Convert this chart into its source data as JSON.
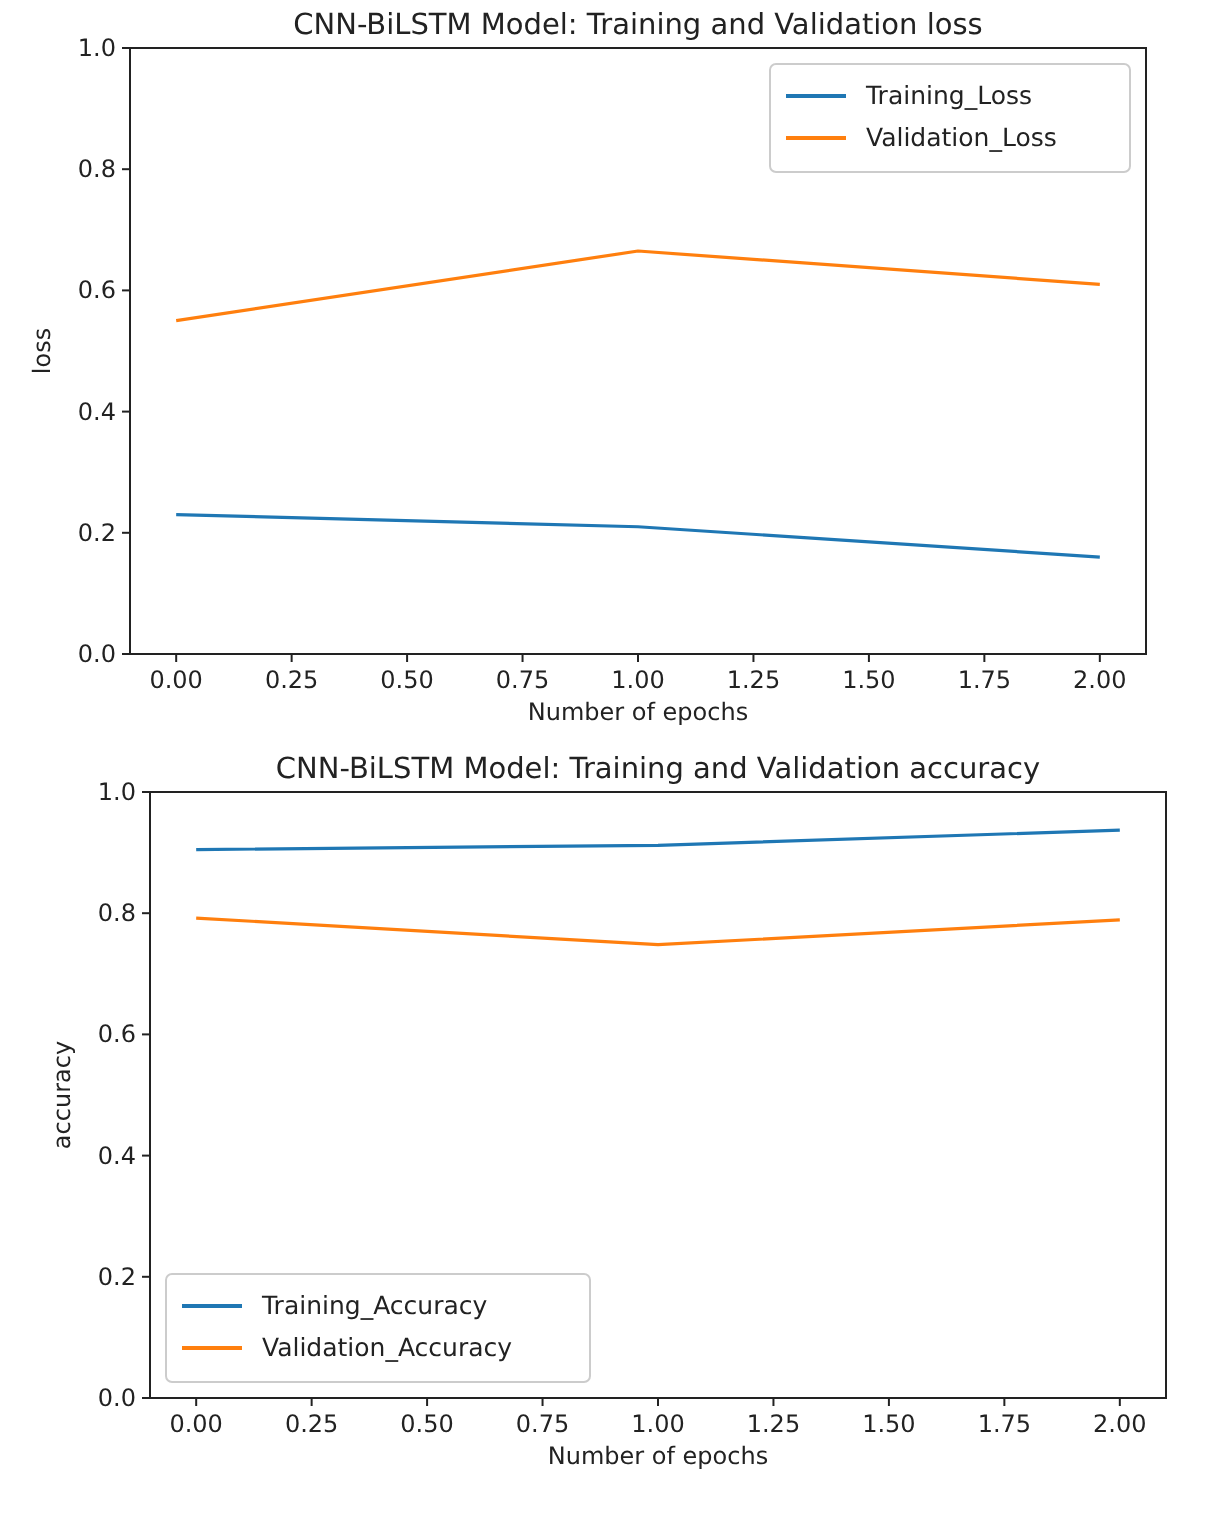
{
  "chart_data": [
    {
      "type": "line",
      "title": "CNN-BiLSTM Model: Training and Validation loss",
      "xlabel": "Number of epochs",
      "ylabel": "loss",
      "x": [
        0,
        1,
        2
      ],
      "series": [
        {
          "name": "Training_Loss",
          "color": "#1f77b4",
          "values": [
            0.23,
            0.21,
            0.16
          ]
        },
        {
          "name": "Validation_Loss",
          "color": "#ff7f0e",
          "values": [
            0.55,
            0.665,
            0.61
          ]
        }
      ],
      "xlim": [
        -0.1,
        2.1
      ],
      "xticks": [
        {
          "value": 0,
          "label": "0.00"
        },
        {
          "value": 0.25,
          "label": "0.25"
        },
        {
          "value": 0.5,
          "label": "0.50"
        },
        {
          "value": 0.75,
          "label": "0.75"
        },
        {
          "value": 1,
          "label": "1.00"
        },
        {
          "value": 1.25,
          "label": "1.25"
        },
        {
          "value": 1.5,
          "label": "1.50"
        },
        {
          "value": 1.75,
          "label": "1.75"
        },
        {
          "value": 2,
          "label": "2.00"
        }
      ],
      "ylim": [
        0,
        1
      ],
      "yticks": [
        {
          "value": 0,
          "label": "0.0"
        },
        {
          "value": 0.2,
          "label": "0.2"
        },
        {
          "value": 0.4,
          "label": "0.4"
        },
        {
          "value": 0.6,
          "label": "0.6"
        },
        {
          "value": 0.8,
          "label": "0.8"
        },
        {
          "value": 1,
          "label": "1.0"
        }
      ],
      "legend": "top right"
    },
    {
      "type": "line",
      "title": "CNN-BiLSTM Model: Training and Validation accuracy",
      "xlabel": "Number of epochs",
      "ylabel": "accuracy",
      "x": [
        0,
        1,
        2
      ],
      "series": [
        {
          "name": "Training_Accuracy",
          "color": "#1f77b4",
          "values": [
            0.905,
            0.912,
            0.937
          ]
        },
        {
          "name": "Validation_Accuracy",
          "color": "#ff7f0e",
          "values": [
            0.792,
            0.748,
            0.789
          ]
        }
      ],
      "xlim": [
        -0.1,
        2.1
      ],
      "xticks": [
        {
          "value": 0,
          "label": "0.00"
        },
        {
          "value": 0.25,
          "label": "0.25"
        },
        {
          "value": 0.5,
          "label": "0.50"
        },
        {
          "value": 0.75,
          "label": "0.75"
        },
        {
          "value": 1,
          "label": "1.00"
        },
        {
          "value": 1.25,
          "label": "1.25"
        },
        {
          "value": 1.5,
          "label": "1.50"
        },
        {
          "value": 1.75,
          "label": "1.75"
        },
        {
          "value": 2,
          "label": "2.00"
        }
      ],
      "ylim": [
        0,
        1
      ],
      "yticks": [
        {
          "value": 0,
          "label": "0.0"
        },
        {
          "value": 0.2,
          "label": "0.2"
        },
        {
          "value": 0.4,
          "label": "0.4"
        },
        {
          "value": 0.6,
          "label": "0.6"
        },
        {
          "value": 0.8,
          "label": "0.8"
        },
        {
          "value": 1,
          "label": "1.0"
        }
      ],
      "legend": "bottom left"
    }
  ]
}
